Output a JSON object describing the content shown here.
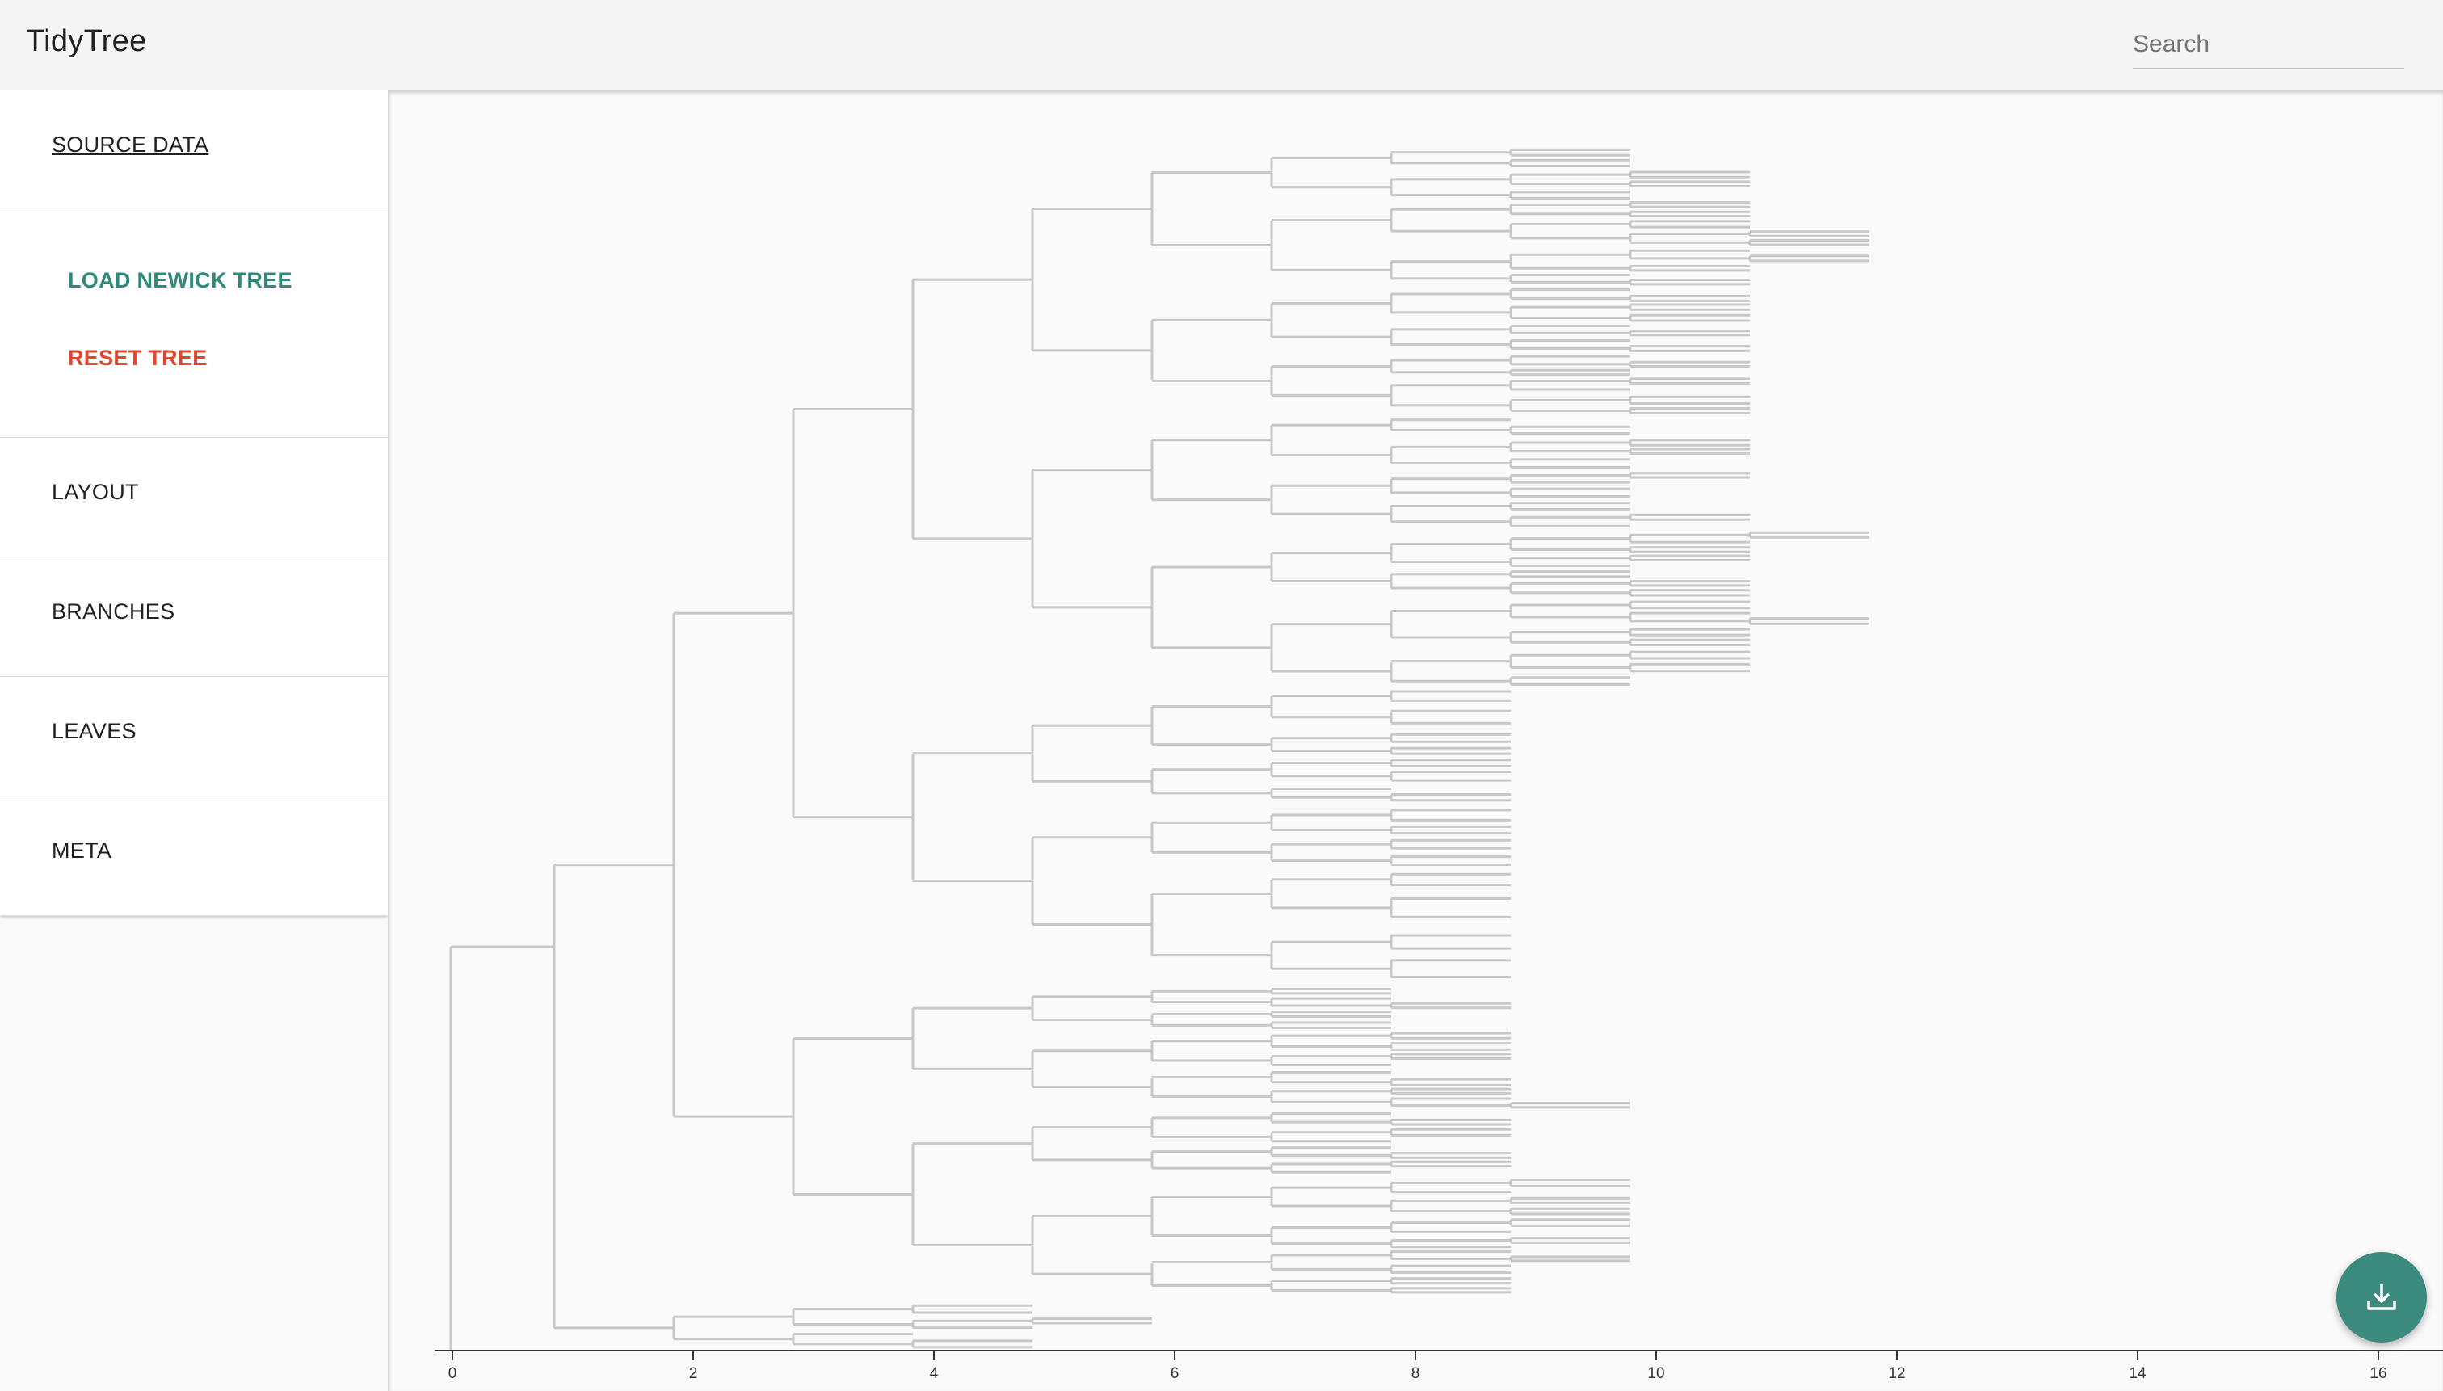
{
  "app": {
    "title": "TidyTree"
  },
  "search": {
    "placeholder": "Search",
    "value": ""
  },
  "sidebar": {
    "source_data": {
      "label": "SOURCE DATA"
    },
    "actions": {
      "load_label": "LOAD NEWICK TREE",
      "reset_label": "RESET TREE"
    },
    "sections": [
      {
        "label": "LAYOUT"
      },
      {
        "label": "BRANCHES"
      },
      {
        "label": "LEAVES"
      },
      {
        "label": "META"
      }
    ]
  },
  "tree_view": {
    "axis_ticks": [
      "0",
      "2",
      "4",
      "6",
      "8",
      "10",
      "12",
      "14",
      "16"
    ],
    "branch_color": "#c8c8c8",
    "axis_color": "#333333"
  },
  "download_button": {
    "icon": "download-icon",
    "color": "#3a8a7e"
  }
}
